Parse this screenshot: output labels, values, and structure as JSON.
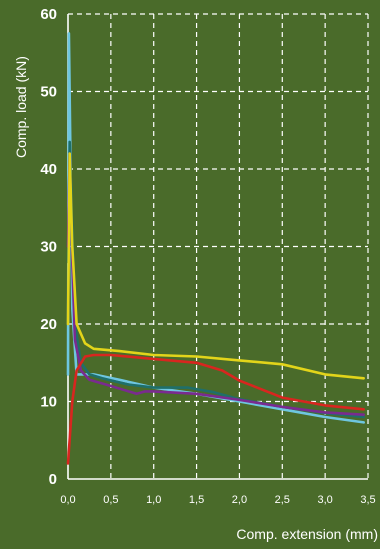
{
  "chart_data": {
    "type": "line",
    "xlabel": "Comp. extension (mm)",
    "ylabel": "Comp. load (kN)",
    "xlim": [
      0,
      3.5
    ],
    "ylim": [
      0,
      60
    ],
    "x_ticks": [
      "0,0",
      "0,5",
      "1,0",
      "1,5",
      "2,0",
      "2,5",
      "3,0",
      "3,5"
    ],
    "y_ticks": [
      "0",
      "10",
      "20",
      "30",
      "40",
      "50",
      "60"
    ],
    "grid": true,
    "series": [
      {
        "color": "#6ec6e0",
        "x": [
          0,
          0.01,
          0.03,
          0.05,
          0.1,
          0.3,
          0.6,
          1.0,
          1.5,
          2.0,
          2.5,
          3.0,
          3.45
        ],
        "y": [
          13.5,
          57.5,
          40,
          22,
          13.5,
          13.5,
          12.8,
          11.8,
          11.0,
          10.0,
          9.0,
          8.0,
          7.3
        ]
      },
      {
        "color": "#1f6f6a",
        "x": [
          0,
          0.02,
          0.05,
          0.08,
          0.15,
          0.25,
          0.4,
          0.7,
          1.0,
          1.4,
          1.7,
          2.0,
          2.5,
          3.0,
          3.45
        ],
        "y": [
          28,
          43.5,
          32,
          20,
          15,
          13.5,
          13.0,
          12.2,
          11.8,
          11.8,
          11.2,
          10.3,
          9.3,
          8.5,
          8.0
        ]
      },
      {
        "color": "#7a2b8f",
        "x": [
          0,
          0.02,
          0.05,
          0.08,
          0.15,
          0.25,
          0.5,
          0.8,
          0.9,
          1.0,
          1.5,
          2.0,
          2.5,
          3.0,
          3.45
        ],
        "y": [
          30,
          42,
          28,
          18,
          14,
          12.8,
          12.0,
          11.0,
          11.3,
          11.3,
          11.0,
          10.2,
          9.3,
          8.6,
          8.3
        ]
      },
      {
        "color": "#e2d41a",
        "x": [
          0,
          0.02,
          0.05,
          0.1,
          0.2,
          0.3,
          0.6,
          1.0,
          1.5,
          2.0,
          2.5,
          3.0,
          3.45
        ],
        "y": [
          20,
          42,
          30,
          20,
          17.5,
          16.8,
          16.5,
          16.0,
          15.8,
          15.3,
          14.8,
          13.5,
          13.0
        ]
      },
      {
        "color": "#d8261f",
        "x": [
          0,
          0.05,
          0.1,
          0.2,
          0.3,
          0.5,
          1.0,
          1.5,
          1.8,
          2.0,
          2.5,
          3.0,
          3.45
        ],
        "y": [
          2,
          10,
          14,
          15.8,
          16.0,
          16.0,
          15.5,
          15.0,
          14.0,
          12.7,
          10.5,
          9.5,
          9.0
        ]
      }
    ]
  }
}
